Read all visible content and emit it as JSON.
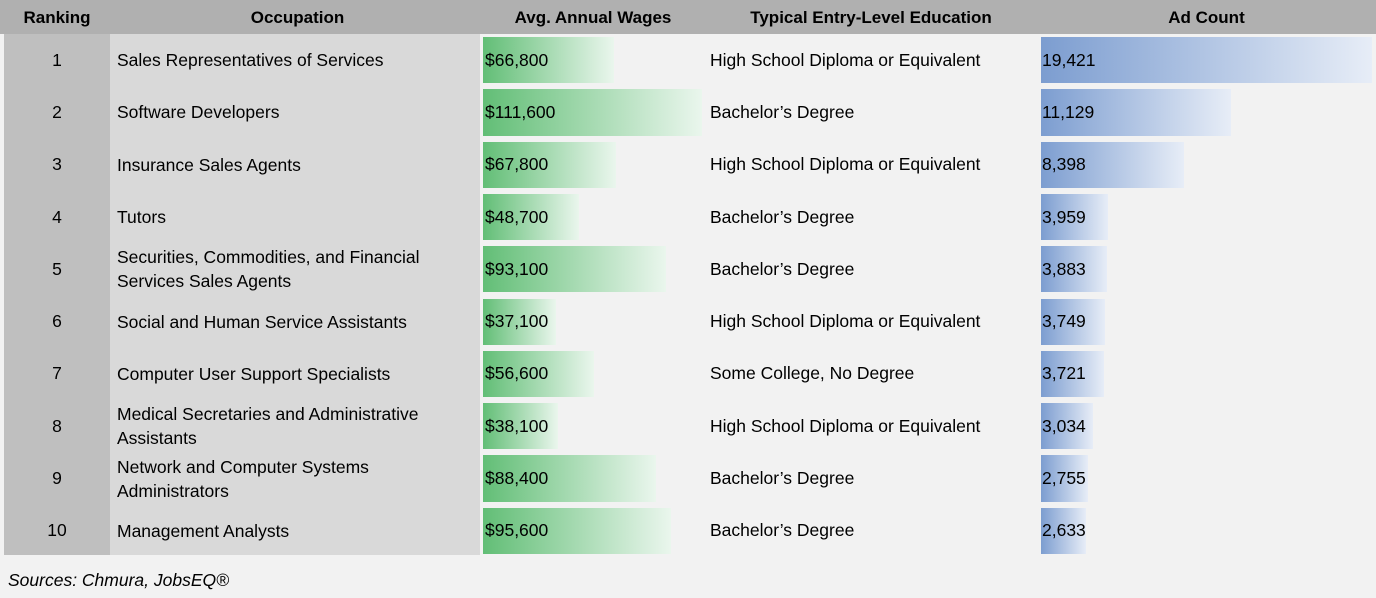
{
  "headers": {
    "ranking": "Ranking",
    "occupation": "Occupation",
    "wages": "Avg. Annual Wages",
    "education": "Typical Entry-Level Education",
    "ads": "Ad Count"
  },
  "chart_data": {
    "type": "table",
    "columns": [
      "Ranking",
      "Occupation",
      "Avg. Annual Wages",
      "Typical Entry-Level Education",
      "Ad Count"
    ],
    "wage_max": 111600,
    "ad_max": 19421,
    "rows": [
      {
        "rank": "1",
        "occupation": "Sales Representatives of Services",
        "wage": 66800,
        "wage_label": "$66,800",
        "education": "High School Diploma or Equivalent",
        "ads": 19421,
        "ads_label": "19,421"
      },
      {
        "rank": "2",
        "occupation": "Software Developers",
        "wage": 111600,
        "wage_label": "$111,600",
        "education": "Bachelor’s Degree",
        "ads": 11129,
        "ads_label": "11,129"
      },
      {
        "rank": "3",
        "occupation": "Insurance Sales Agents",
        "wage": 67800,
        "wage_label": "$67,800",
        "education": "High School Diploma or Equivalent",
        "ads": 8398,
        "ads_label": "8,398"
      },
      {
        "rank": "4",
        "occupation": "Tutors",
        "wage": 48700,
        "wage_label": "$48,700",
        "education": "Bachelor’s Degree",
        "ads": 3959,
        "ads_label": "3,959"
      },
      {
        "rank": "5",
        "occupation": "Securities, Commodities, and Financial Services Sales Agents",
        "wage": 93100,
        "wage_label": "$93,100",
        "education": "Bachelor’s Degree",
        "ads": 3883,
        "ads_label": "3,883"
      },
      {
        "rank": "6",
        "occupation": "Social and Human Service Assistants",
        "wage": 37100,
        "wage_label": "$37,100",
        "education": "High School Diploma or Equivalent",
        "ads": 3749,
        "ads_label": "3,749"
      },
      {
        "rank": "7",
        "occupation": "Computer User Support Specialists",
        "wage": 56600,
        "wage_label": "$56,600",
        "education": "Some College, No Degree",
        "ads": 3721,
        "ads_label": "3,721"
      },
      {
        "rank": "8",
        "occupation": "Medical Secretaries and Administrative Assistants",
        "wage": 38100,
        "wage_label": "$38,100",
        "education": "High School Diploma or Equivalent",
        "ads": 3034,
        "ads_label": "3,034"
      },
      {
        "rank": "9",
        "occupation": "Network and Computer Systems Administrators",
        "wage": 88400,
        "wage_label": "$88,400",
        "education": "Bachelor’s Degree",
        "ads": 2755,
        "ads_label": "2,755"
      },
      {
        "rank": "10",
        "occupation": "Management Analysts",
        "wage": 95600,
        "wage_label": "$95,600",
        "education": "Bachelor’s Degree",
        "ads": 2633,
        "ads_label": "2,633"
      }
    ],
    "colors": {
      "wage_bar": "#62be76",
      "ad_bar": "#7c9dd0"
    }
  },
  "source": "Sources: Chmura, JobsEQ®"
}
